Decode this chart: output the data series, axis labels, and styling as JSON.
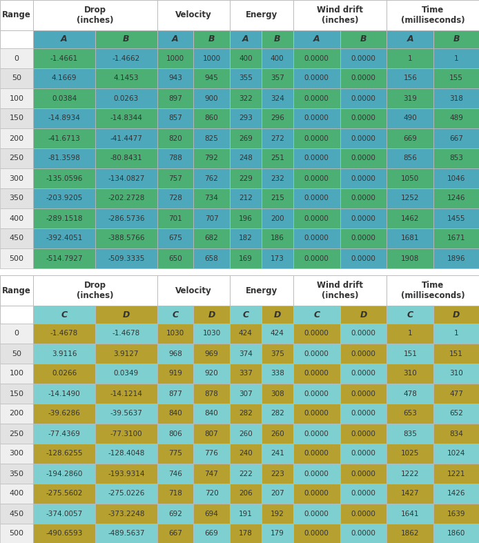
{
  "table1_data": [
    [
      0,
      "-1.4661",
      "-1.4662",
      "1000",
      "1000",
      "400",
      "400",
      "0.0000",
      "0.0000",
      "1",
      "1"
    ],
    [
      50,
      "4.1669",
      "4.1453",
      "943",
      "945",
      "355",
      "357",
      "0.0000",
      "0.0000",
      "156",
      "155"
    ],
    [
      100,
      "0.0384",
      "0.0263",
      "897",
      "900",
      "322",
      "324",
      "0.0000",
      "0.0000",
      "319",
      "318"
    ],
    [
      150,
      "-14.8934",
      "-14.8344",
      "857",
      "860",
      "293",
      "296",
      "0.0000",
      "0.0000",
      "490",
      "489"
    ],
    [
      200,
      "-41.6713",
      "-41.4477",
      "820",
      "825",
      "269",
      "272",
      "0.0000",
      "0.0000",
      "669",
      "667"
    ],
    [
      250,
      "-81.3598",
      "-80.8431",
      "788",
      "792",
      "248",
      "251",
      "0.0000",
      "0.0000",
      "856",
      "853"
    ],
    [
      300,
      "-135.0596",
      "-134.0827",
      "757",
      "762",
      "229",
      "232",
      "0.0000",
      "0.0000",
      "1050",
      "1046"
    ],
    [
      350,
      "-203.9205",
      "-202.2728",
      "728",
      "734",
      "212",
      "215",
      "0.0000",
      "0.0000",
      "1252",
      "1246"
    ],
    [
      400,
      "-289.1518",
      "-286.5736",
      "701",
      "707",
      "196",
      "200",
      "0.0000",
      "0.0000",
      "1462",
      "1455"
    ],
    [
      450,
      "-392.4051",
      "-388.5766",
      "675",
      "682",
      "182",
      "186",
      "0.0000",
      "0.0000",
      "1681",
      "1671"
    ],
    [
      500,
      "-514.7927",
      "-509.3335",
      "650",
      "658",
      "169",
      "173",
      "0.0000",
      "0.0000",
      "1908",
      "1896"
    ]
  ],
  "table2_data": [
    [
      0,
      "-1.4678",
      "-1.4678",
      "1030",
      "1030",
      "424",
      "424",
      "0.0000",
      "0.0000",
      "1",
      "1"
    ],
    [
      50,
      "3.9116",
      "3.9127",
      "968",
      "969",
      "374",
      "375",
      "0.0000",
      "0.0000",
      "151",
      "151"
    ],
    [
      100,
      "0.0266",
      "0.0349",
      "919",
      "920",
      "337",
      "338",
      "0.0000",
      "0.0000",
      "310",
      "310"
    ],
    [
      150,
      "-14.1490",
      "-14.1214",
      "877",
      "878",
      "307",
      "308",
      "0.0000",
      "0.0000",
      "478",
      "477"
    ],
    [
      200,
      "-39.6286",
      "-39.5637",
      "840",
      "840",
      "282",
      "282",
      "0.0000",
      "0.0000",
      "653",
      "652"
    ],
    [
      250,
      "-77.4369",
      "-77.3100",
      "806",
      "807",
      "260",
      "260",
      "0.0000",
      "0.0000",
      "835",
      "834"
    ],
    [
      300,
      "-128.6255",
      "-128.4048",
      "775",
      "776",
      "240",
      "241",
      "0.0000",
      "0.0000",
      "1025",
      "1024"
    ],
    [
      350,
      "-194.2860",
      "-193.9314",
      "746",
      "747",
      "222",
      "223",
      "0.0000",
      "0.0000",
      "1222",
      "1221"
    ],
    [
      400,
      "-275.5602",
      "-275.0226",
      "718",
      "720",
      "206",
      "207",
      "0.0000",
      "0.0000",
      "1427",
      "1426"
    ],
    [
      450,
      "-374.0057",
      "-373.2248",
      "692",
      "694",
      "191",
      "192",
      "0.0000",
      "0.0000",
      "1641",
      "1639"
    ],
    [
      500,
      "-490.6593",
      "-489.5637",
      "667",
      "669",
      "178",
      "179",
      "0.0000",
      "0.0000",
      "1862",
      "1860"
    ]
  ],
  "col_A1_dark": "#4DA8BC",
  "col_A1_light": "#A8D8E8",
  "col_B1_dark": "#4CAF74",
  "col_B1_light": "#A8DDB8",
  "col_A2_dark": "#7ECFCF",
  "col_A2_light": "#BEEAEA",
  "col_B2_dark": "#B5A030",
  "col_B2_light": "#D4C878",
  "range_even": "#F0F0F0",
  "range_odd": "#E4E4E4",
  "header_bg": "#FFFFFF",
  "border_color": "#BBBBBB",
  "text_dark": "#333333",
  "figw": 6.94,
  "figh": 7.87,
  "dpi": 100
}
